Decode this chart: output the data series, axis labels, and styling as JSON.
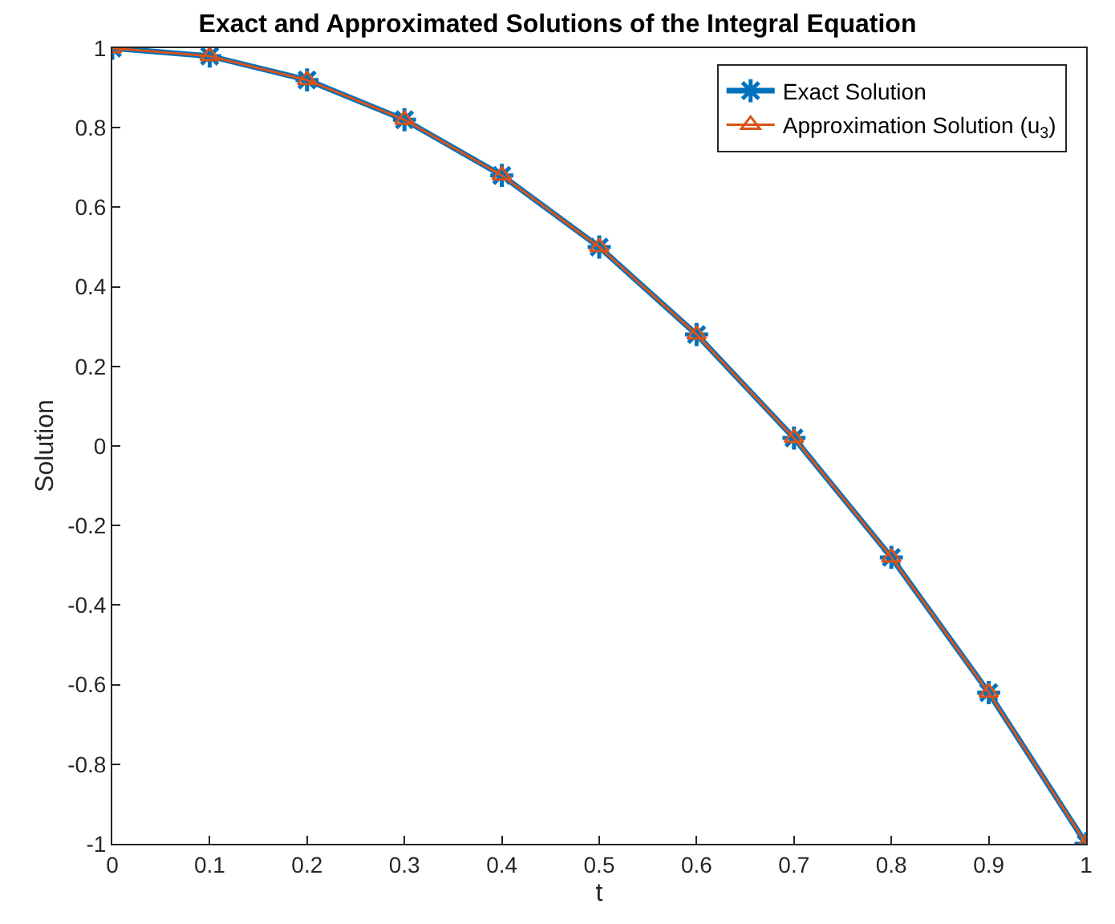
{
  "chart_data": {
    "type": "line",
    "title": "Exact and Approximated Solutions of the Integral Equation",
    "xlabel": "t",
    "ylabel": "Solution",
    "x": [
      0,
      0.1,
      0.2,
      0.3,
      0.4,
      0.5,
      0.6,
      0.7,
      0.8,
      0.9,
      1
    ],
    "series": [
      {
        "name": "Exact Solution",
        "color": "#0072bd",
        "marker": "cross",
        "values": [
          1,
          0.98,
          0.92,
          0.82,
          0.68,
          0.5,
          0.28,
          0.02,
          -0.28,
          -0.62,
          -1
        ]
      },
      {
        "name": "Approximation Solution (u$_{3}$)",
        "color": "#d95319",
        "marker": "triangle",
        "values": [
          1,
          0.98,
          0.92,
          0.82,
          0.68,
          0.5,
          0.28,
          0.02,
          -0.28,
          -0.62,
          -1
        ]
      }
    ],
    "xlim": [
      0,
      1
    ],
    "xticks": [
      0,
      0.1,
      0.2,
      0.3,
      0.4,
      0.5,
      0.6,
      0.7,
      0.8,
      0.9,
      1
    ],
    "ylim": [
      -1,
      1
    ],
    "yticks": [
      -1,
      -0.8,
      -0.6,
      -0.4,
      -0.2,
      0,
      0.2,
      0.4,
      0.6,
      0.8,
      1
    ],
    "legend": "top right",
    "line_style": "solid"
  }
}
